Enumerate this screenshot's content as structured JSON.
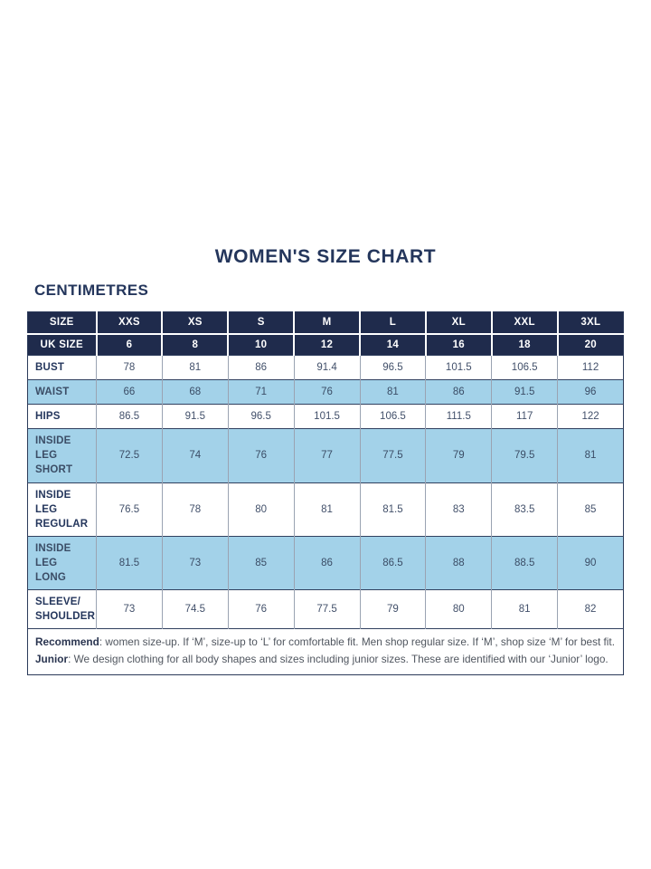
{
  "page": {
    "title": "WOMEN'S SIZE CHART",
    "unit_heading": "CENTIMETRES"
  },
  "table": {
    "header": {
      "size_label": "SIZE",
      "uk_size_label": "UK SIZE",
      "sizes": [
        "XXS",
        "XS",
        "S",
        "M",
        "L",
        "XL",
        "XXL",
        "3XL"
      ],
      "uk_sizes": [
        "6",
        "8",
        "10",
        "12",
        "14",
        "16",
        "18",
        "20"
      ]
    },
    "rows": [
      {
        "label": "BUST",
        "highlight": false,
        "values": [
          "78",
          "81",
          "86",
          "91.4",
          "96.5",
          "101.5",
          "106.5",
          "112"
        ]
      },
      {
        "label": "WAIST",
        "highlight": true,
        "values": [
          "66",
          "68",
          "71",
          "76",
          "81",
          "86",
          "91.5",
          "96"
        ]
      },
      {
        "label": "HIPS",
        "highlight": false,
        "values": [
          "86.5",
          "91.5",
          "96.5",
          "101.5",
          "106.5",
          "111.5",
          "117",
          "122"
        ]
      },
      {
        "label": "INSIDE LEG\nSHORT",
        "highlight": true,
        "values": [
          "72.5",
          "74",
          "76",
          "77",
          "77.5",
          "79",
          "79.5",
          "81"
        ]
      },
      {
        "label": "INSIDE LEG\nREGULAR",
        "highlight": false,
        "values": [
          "76.5",
          "78",
          "80",
          "81",
          "81.5",
          "83",
          "83.5",
          "85"
        ]
      },
      {
        "label": "INSIDE LEG\nLONG",
        "highlight": true,
        "values": [
          "81.5",
          "73",
          "85",
          "86",
          "86.5",
          "88",
          "88.5",
          "90"
        ]
      },
      {
        "label": "SLEEVE/\nSHOULDER",
        "highlight": false,
        "values": [
          "73",
          "74.5",
          "76",
          "77.5",
          "79",
          "80",
          "81",
          "82"
        ]
      }
    ],
    "footnote": {
      "line1_label": "Recommend",
      "line1_text": ": women size-up. If ‘M’, size-up to ‘L’ for comfortable fit. Men shop regular size. If ‘M’, shop size ‘M’ for best fit.",
      "line2_label": "Junior",
      "line2_text": ": We design clothing for all body shapes and sizes including junior sizes. These are identified with our ‘Junior’ logo."
    }
  },
  "colors": {
    "header_navy": "#1f2b4c",
    "highlight_blue": "#a3d2e9",
    "heading_text_navy": "#24365c"
  }
}
